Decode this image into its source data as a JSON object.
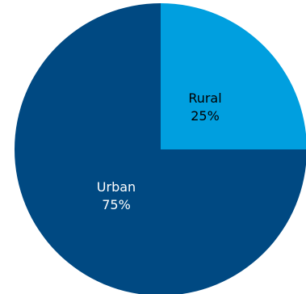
{
  "chart_data": {
    "type": "pie",
    "title": "",
    "start_angle_deg": 90,
    "direction": "clockwise",
    "legend": "none",
    "slices": [
      {
        "label": "Rural",
        "value": 25,
        "value_label": "25%",
        "color": "#009FDF",
        "text_color": "#000000"
      },
      {
        "label": "Urban",
        "value": 75,
        "value_label": "75%",
        "color": "#004982",
        "text_color": "#FFFFFF"
      }
    ]
  }
}
